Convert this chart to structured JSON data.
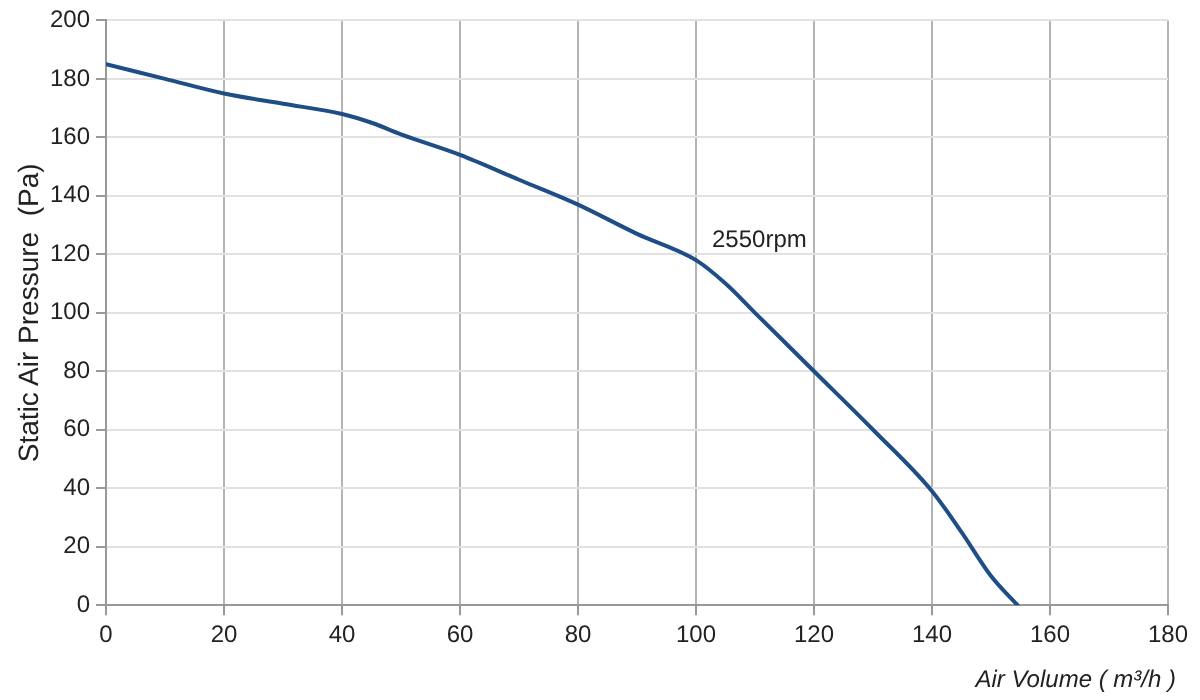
{
  "chart_data": {
    "type": "line",
    "xlabel": "Air Volume ( m³/h )",
    "ylabel": "Static Air Pressure  (Pa)",
    "x": [
      0,
      10,
      20,
      30,
      40,
      45,
      50,
      60,
      70,
      80,
      90,
      100,
      105,
      110,
      120,
      130,
      140,
      145,
      150,
      154.5
    ],
    "series": [
      {
        "name": "2550rpm",
        "color": "#1f4e87",
        "values": [
          185,
          180,
          175,
          171.5,
          168,
          165,
          161,
          154,
          145.5,
          137,
          127,
          118,
          110,
          100,
          80,
          60,
          39,
          25,
          10,
          0
        ]
      }
    ],
    "xlim": [
      0,
      180
    ],
    "xticks": [
      0,
      20,
      40,
      60,
      80,
      100,
      120,
      140,
      160,
      180
    ],
    "ylim": [
      0,
      200
    ],
    "yticks": [
      0,
      20,
      40,
      60,
      80,
      100,
      120,
      140,
      160,
      180,
      200
    ],
    "grid": true,
    "legend": false,
    "marker": "none",
    "line_style": "solid"
  }
}
